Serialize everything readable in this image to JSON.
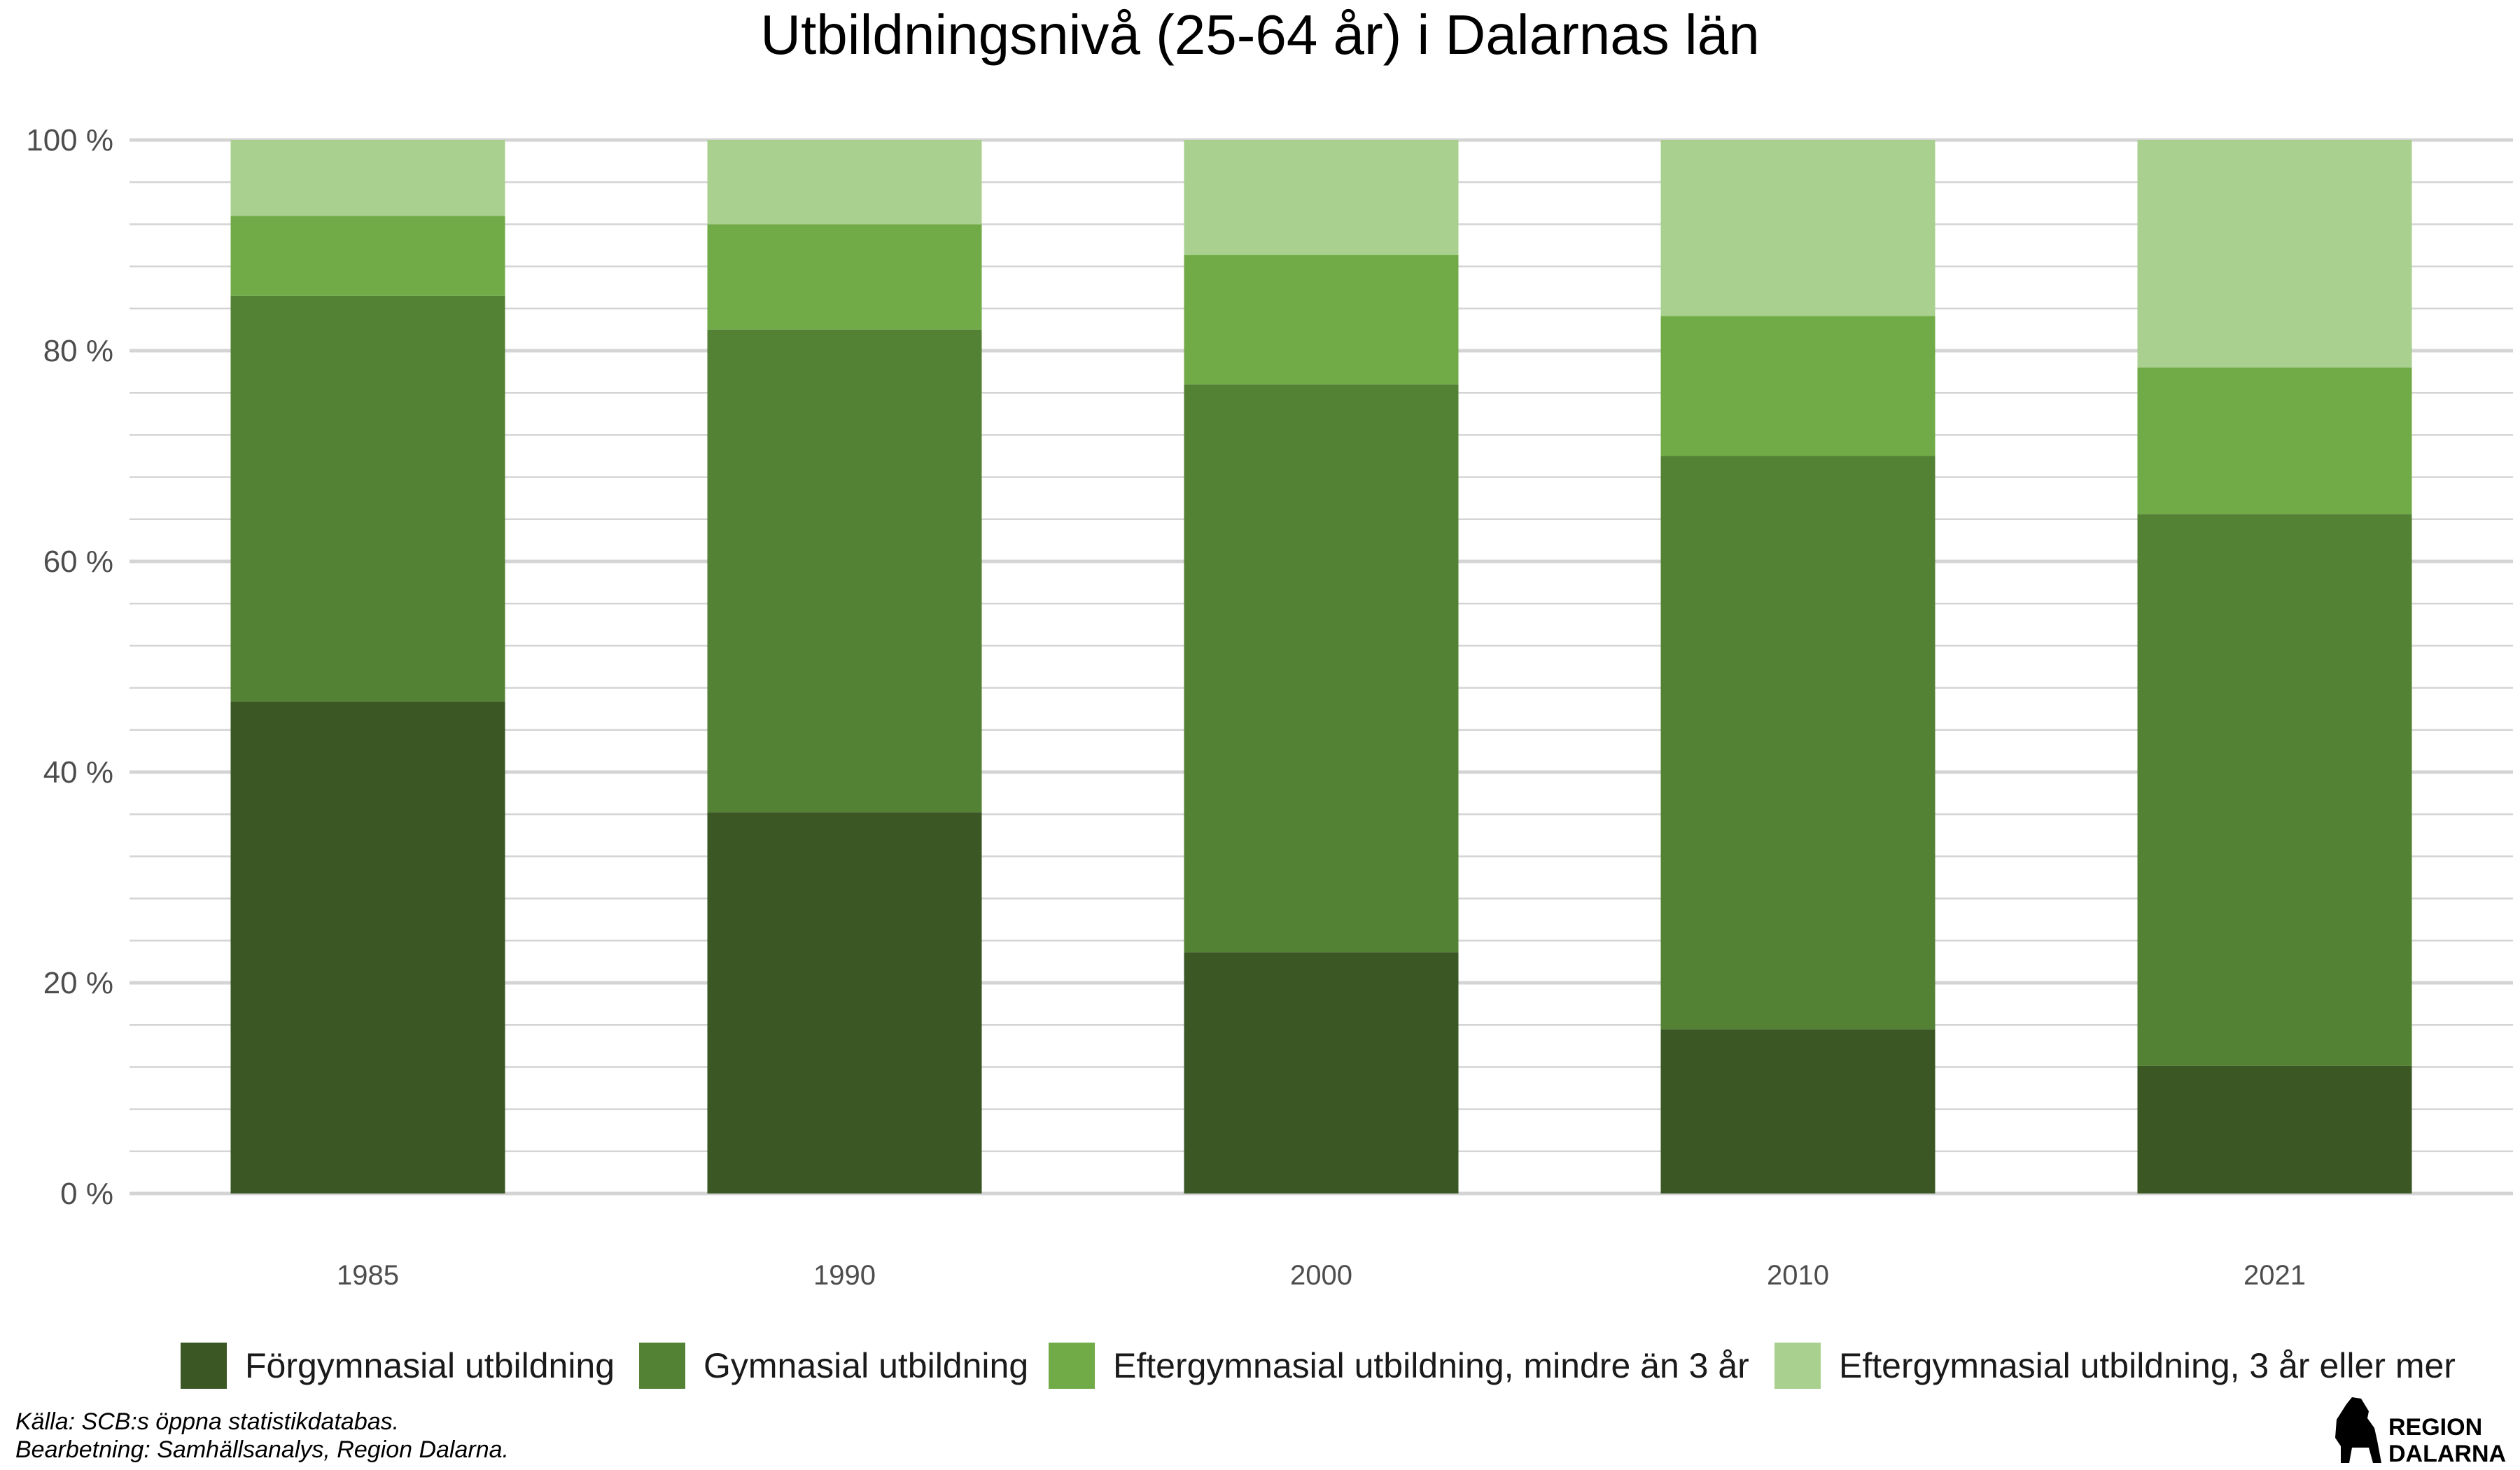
{
  "chart_data": {
    "type": "bar",
    "stacked": true,
    "title": "Utbildningsnivå (25-64 år) i Dalarnas län",
    "categories": [
      "1985",
      "1990",
      "2000",
      "2010",
      "2021"
    ],
    "series": [
      {
        "name": "Förgymnasial utbildning",
        "color": "#3a5724",
        "values": [
          46.7,
          36.2,
          22.9,
          15.6,
          12.1
        ]
      },
      {
        "name": "Gymnasial utbildning",
        "color": "#538234",
        "values": [
          38.5,
          45.8,
          53.9,
          54.4,
          52.4
        ]
      },
      {
        "name": "Eftergymnasial utbildning, mindre än 3 år",
        "color": "#71ab48",
        "values": [
          7.6,
          10.0,
          12.3,
          13.3,
          13.9
        ]
      },
      {
        "name": "Eftergymnasial utbildning, 3 år eller mer",
        "color": "#a9d08e",
        "values": [
          7.2,
          8.0,
          10.9,
          16.7,
          21.6
        ]
      }
    ],
    "ylim": [
      0,
      100
    ],
    "yticks": [
      0,
      20,
      40,
      60,
      80,
      100
    ],
    "ytick_labels": [
      "0 %",
      "20 %",
      "40 %",
      "60 %",
      "80 %",
      "100 %"
    ],
    "minor_grid_step": 4,
    "grid": true,
    "legend_position": "bottom",
    "xlabel": "",
    "ylabel": ""
  },
  "caption": {
    "source": "Källa: SCB:s öppna statistikdatabas.",
    "processing": "Bearbetning: Samhällsanalys, Region Dalarna."
  },
  "logo": {
    "line1": "REGION",
    "line2": "DALARNA"
  }
}
